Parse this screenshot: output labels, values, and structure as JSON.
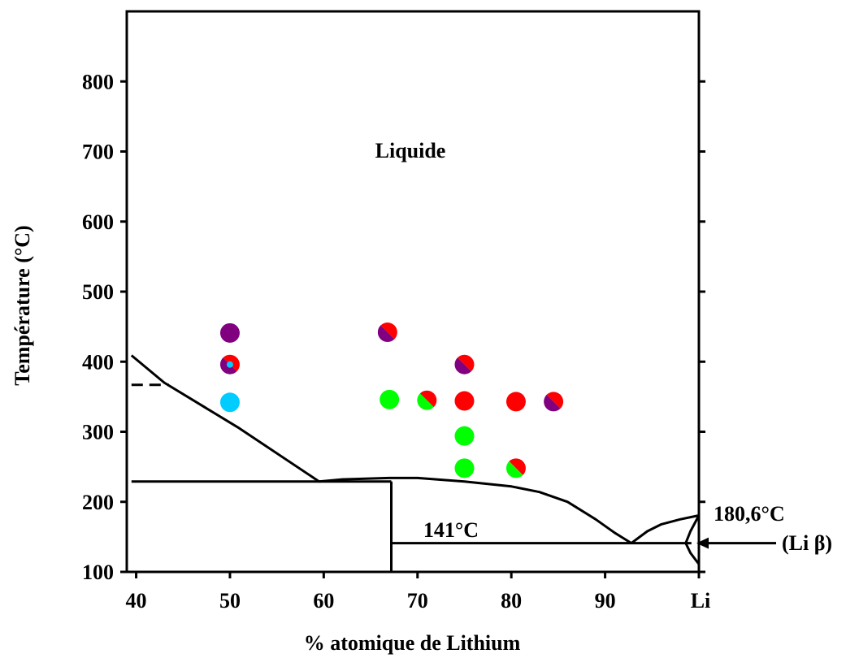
{
  "chart_data": {
    "type": "scatter",
    "title": "",
    "xlabel": "% atomique de Lithium",
    "ylabel": "Température (°C)",
    "xlim": [
      39,
      100
    ],
    "ylim": [
      100,
      900
    ],
    "x_ticks": [
      {
        "value": 40,
        "label": "40"
      },
      {
        "value": 50,
        "label": "50"
      },
      {
        "value": 60,
        "label": "60"
      },
      {
        "value": 70,
        "label": "70"
      },
      {
        "value": 80,
        "label": "80"
      },
      {
        "value": 90,
        "label": "90"
      },
      {
        "value": 100,
        "label": "Li"
      }
    ],
    "y_ticks": [
      {
        "value": 100,
        "label": "100"
      },
      {
        "value": 200,
        "label": "200"
      },
      {
        "value": 300,
        "label": "300"
      },
      {
        "value": 400,
        "label": "400"
      },
      {
        "value": 500,
        "label": "500"
      },
      {
        "value": 600,
        "label": "600"
      },
      {
        "value": 700,
        "label": "700"
      },
      {
        "value": 800,
        "label": "800"
      }
    ],
    "colors": {
      "purple": "#800080",
      "red": "#ff0000",
      "green": "#00ff00",
      "cyan": "#00ccff",
      "line": "#000000"
    },
    "annotations": {
      "liquid": "Liquide",
      "eutectic": "141°C",
      "melting": "180,6°C",
      "li_beta": "(Li β)"
    },
    "points": [
      {
        "x": 50,
        "y": 441,
        "colors": [
          "purple"
        ]
      },
      {
        "x": 50,
        "y": 396,
        "colors": [
          "red",
          "purple"
        ],
        "center": "cyan"
      },
      {
        "x": 50,
        "y": 342,
        "colors": [
          "cyan"
        ]
      },
      {
        "x": 66.8,
        "y": 442,
        "colors": [
          "red",
          "purple"
        ]
      },
      {
        "x": 67,
        "y": 346,
        "colors": [
          "green"
        ]
      },
      {
        "x": 71,
        "y": 345,
        "colors": [
          "red",
          "green"
        ]
      },
      {
        "x": 75,
        "y": 344,
        "colors": [
          "red"
        ]
      },
      {
        "x": 75,
        "y": 396,
        "colors": [
          "red",
          "purple"
        ]
      },
      {
        "x": 75,
        "y": 294,
        "colors": [
          "green"
        ]
      },
      {
        "x": 75,
        "y": 248,
        "colors": [
          "green"
        ]
      },
      {
        "x": 80.5,
        "y": 343,
        "colors": [
          "red"
        ]
      },
      {
        "x": 80.5,
        "y": 248,
        "colors": [
          "red",
          "green"
        ]
      },
      {
        "x": 84.5,
        "y": 343,
        "colors": [
          "red",
          "purple"
        ]
      }
    ],
    "phase_lines": [
      {
        "name": "liquidus-left",
        "style": "solid",
        "points": [
          [
            39.5,
            409
          ],
          [
            43,
            370
          ],
          [
            51,
            305
          ],
          [
            59.5,
            229
          ]
        ]
      },
      {
        "name": "dashed-level",
        "style": "dashed",
        "points": [
          [
            39.5,
            367
          ],
          [
            43.5,
            367
          ]
        ]
      },
      {
        "name": "peritectic-horizontal",
        "style": "solid",
        "points": [
          [
            39.5,
            229
          ],
          [
            67.2,
            229
          ]
        ]
      },
      {
        "name": "compound-vertical",
        "style": "solid",
        "points": [
          [
            67.2,
            229
          ],
          [
            67.2,
            100
          ]
        ]
      },
      {
        "name": "liquidus-dome",
        "style": "solid",
        "points": [
          [
            59.5,
            229
          ],
          [
            62,
            232
          ],
          [
            67,
            234
          ],
          [
            70,
            234
          ],
          [
            75,
            229
          ],
          [
            80,
            222
          ],
          [
            83,
            214
          ],
          [
            86,
            200
          ],
          [
            89,
            175
          ],
          [
            91,
            156
          ],
          [
            92.8,
            141
          ]
        ]
      },
      {
        "name": "eutectic-horizontal",
        "style": "solid",
        "points": [
          [
            67.2,
            141
          ],
          [
            99.2,
            141
          ]
        ]
      },
      {
        "name": "liquidus-right",
        "style": "solid",
        "points": [
          [
            92.8,
            141
          ],
          [
            94.5,
            158
          ],
          [
            96,
            168
          ],
          [
            98,
            175
          ],
          [
            100,
            180.6
          ]
        ]
      },
      {
        "name": "solvus-upper",
        "style": "solid",
        "points": [
          [
            100,
            180.6
          ],
          [
            99.1,
            158
          ],
          [
            98.6,
            141
          ]
        ]
      },
      {
        "name": "solvus-lower",
        "style": "solid",
        "points": [
          [
            98.6,
            141
          ],
          [
            99.1,
            127
          ],
          [
            100,
            111
          ]
        ]
      }
    ]
  }
}
